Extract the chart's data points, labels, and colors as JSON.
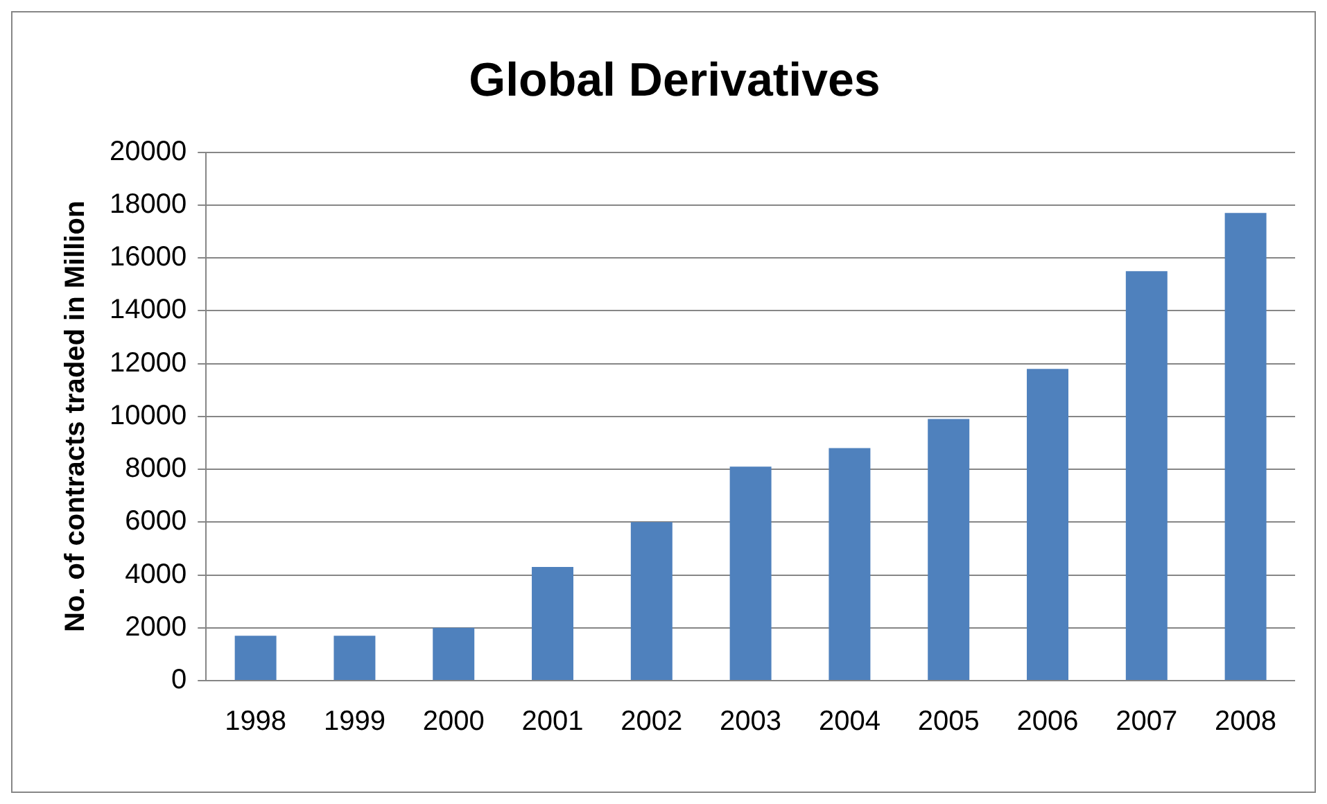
{
  "chart_data": {
    "type": "bar",
    "title": "Global Derivatives",
    "ylabel": "No. of contracts traded in Million",
    "categories": [
      "1998",
      "1999",
      "2000",
      "2001",
      "2002",
      "2003",
      "2004",
      "2005",
      "2006",
      "2007",
      "2008"
    ],
    "values": [
      1700,
      1700,
      2000,
      4300,
      6000,
      8100,
      8800,
      9900,
      11800,
      15500,
      17700
    ],
    "color": "#4f81bd",
    "ylim": [
      0,
      20000
    ],
    "yticks": [
      0,
      2000,
      4000,
      6000,
      8000,
      10000,
      12000,
      14000,
      16000,
      18000,
      20000
    ],
    "grid": "y",
    "legend": false
  }
}
